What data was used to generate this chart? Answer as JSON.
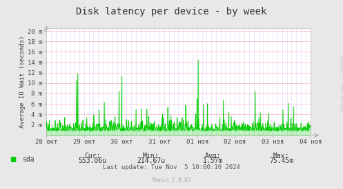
{
  "title": "Disk latency per device - by week",
  "ylabel": "Average IO Wait (seconds)",
  "ytick_labels": [
    "2 m",
    "4 m",
    "6 m",
    "8 m",
    "10 m",
    "12 m",
    "14 m",
    "16 m",
    "18 m",
    "20 m"
  ],
  "ytick_values": [
    0.002,
    0.004,
    0.006,
    0.008,
    0.01,
    0.012,
    0.014,
    0.016,
    0.018,
    0.02
  ],
  "ymax": 0.0205,
  "ymin": 0.0,
  "xtick_labels": [
    "28 окт",
    "29 окт",
    "30 окт",
    "31 окт",
    "01 ноя",
    "02 ноя",
    "03 ноя",
    "04 ноя"
  ],
  "line_color": "#00cc00",
  "fill_color": "#00cc00",
  "outer_bg": "#e8e8e8",
  "plot_bg_color": "#ffffff",
  "legend_label": "sda",
  "legend_color": "#00cc00",
  "stats_cur": "553.06u",
  "stats_min": "214.67u",
  "stats_avg": "1.57m",
  "stats_max": "75.45m",
  "last_update": "Last update: Tue Nov  5 10:00:10 2024",
  "munin_version": "Munin 2.0.67",
  "watermark": "RRDTOOL / TOBI OETIKER"
}
